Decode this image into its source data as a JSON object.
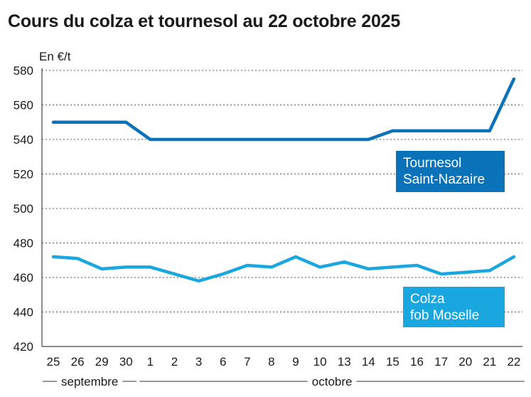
{
  "chart_data": {
    "type": "line",
    "title": "Cours du colza et tournesol au 22 octobre 2025",
    "ylabel": "En €/t",
    "ylim": [
      420,
      580
    ],
    "yticks": [
      420,
      440,
      460,
      480,
      500,
      520,
      540,
      560,
      580
    ],
    "grid": true,
    "categories": [
      "25",
      "26",
      "29",
      "30",
      "1",
      "2",
      "3",
      "6",
      "7",
      "8",
      "9",
      "10",
      "13",
      "14",
      "15",
      "16",
      "17",
      "20",
      "21",
      "22"
    ],
    "months": [
      {
        "label": "septembre",
        "start": 0,
        "end": 3
      },
      {
        "label": "octobre",
        "start": 4,
        "end": 19
      }
    ],
    "series": [
      {
        "name": "Tournesol Saint-Nazaire",
        "name_lines": [
          "Tournesol",
          "Saint-Nazaire"
        ],
        "color": "#0a72b8",
        "values": [
          550,
          550,
          550,
          550,
          540,
          540,
          540,
          540,
          540,
          540,
          540,
          540,
          540,
          540,
          545,
          545,
          545,
          545,
          545,
          575
        ]
      },
      {
        "name": "Colza fob Moselle",
        "name_lines": [
          "Colza",
          "fob Moselle"
        ],
        "color": "#1aa7e0",
        "values": [
          472,
          471,
          465,
          466,
          466,
          462,
          458,
          462,
          467,
          466,
          472,
          466,
          469,
          465,
          466,
          467,
          462,
          463,
          464,
          472
        ]
      }
    ]
  }
}
